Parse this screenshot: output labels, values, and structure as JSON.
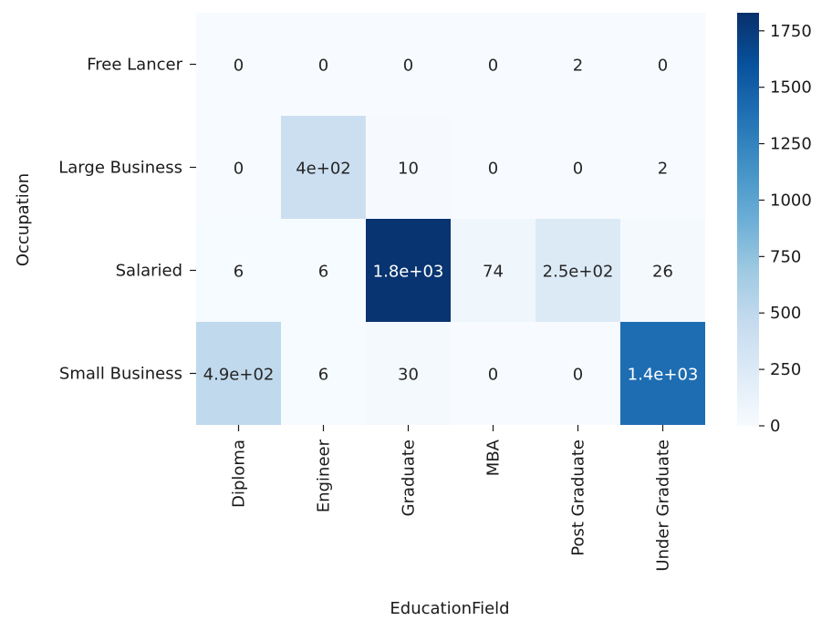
{
  "chart_data": {
    "type": "heatmap",
    "xlabel": "EducationField",
    "ylabel": "Occupation",
    "x_categories": [
      "Diploma",
      "Engineer",
      "Graduate",
      "MBA",
      "Post Graduate",
      "Under Graduate"
    ],
    "y_categories": [
      "Free Lancer",
      "Large Business",
      "Salaried",
      "Small Business"
    ],
    "values": [
      [
        0,
        0,
        0,
        0,
        2,
        0
      ],
      [
        0,
        400,
        10,
        0,
        0,
        2
      ],
      [
        6,
        6,
        1800,
        74,
        250,
        26
      ],
      [
        490,
        6,
        30,
        0,
        0,
        1400
      ]
    ],
    "cell_labels": [
      [
        "0",
        "0",
        "0",
        "0",
        "2",
        "0"
      ],
      [
        "0",
        "4e+02",
        "10",
        "0",
        "0",
        "2"
      ],
      [
        "6",
        "6",
        "1.8e+03",
        "74",
        "2.5e+02",
        "26"
      ],
      [
        "4.9e+02",
        "6",
        "30",
        "0",
        "0",
        "1.4e+03"
      ]
    ],
    "colormap": "Blues",
    "colorbar": {
      "min": 0,
      "max": 1830,
      "ticks": [
        0,
        250,
        500,
        750,
        1000,
        1250,
        1500,
        1750
      ]
    }
  }
}
